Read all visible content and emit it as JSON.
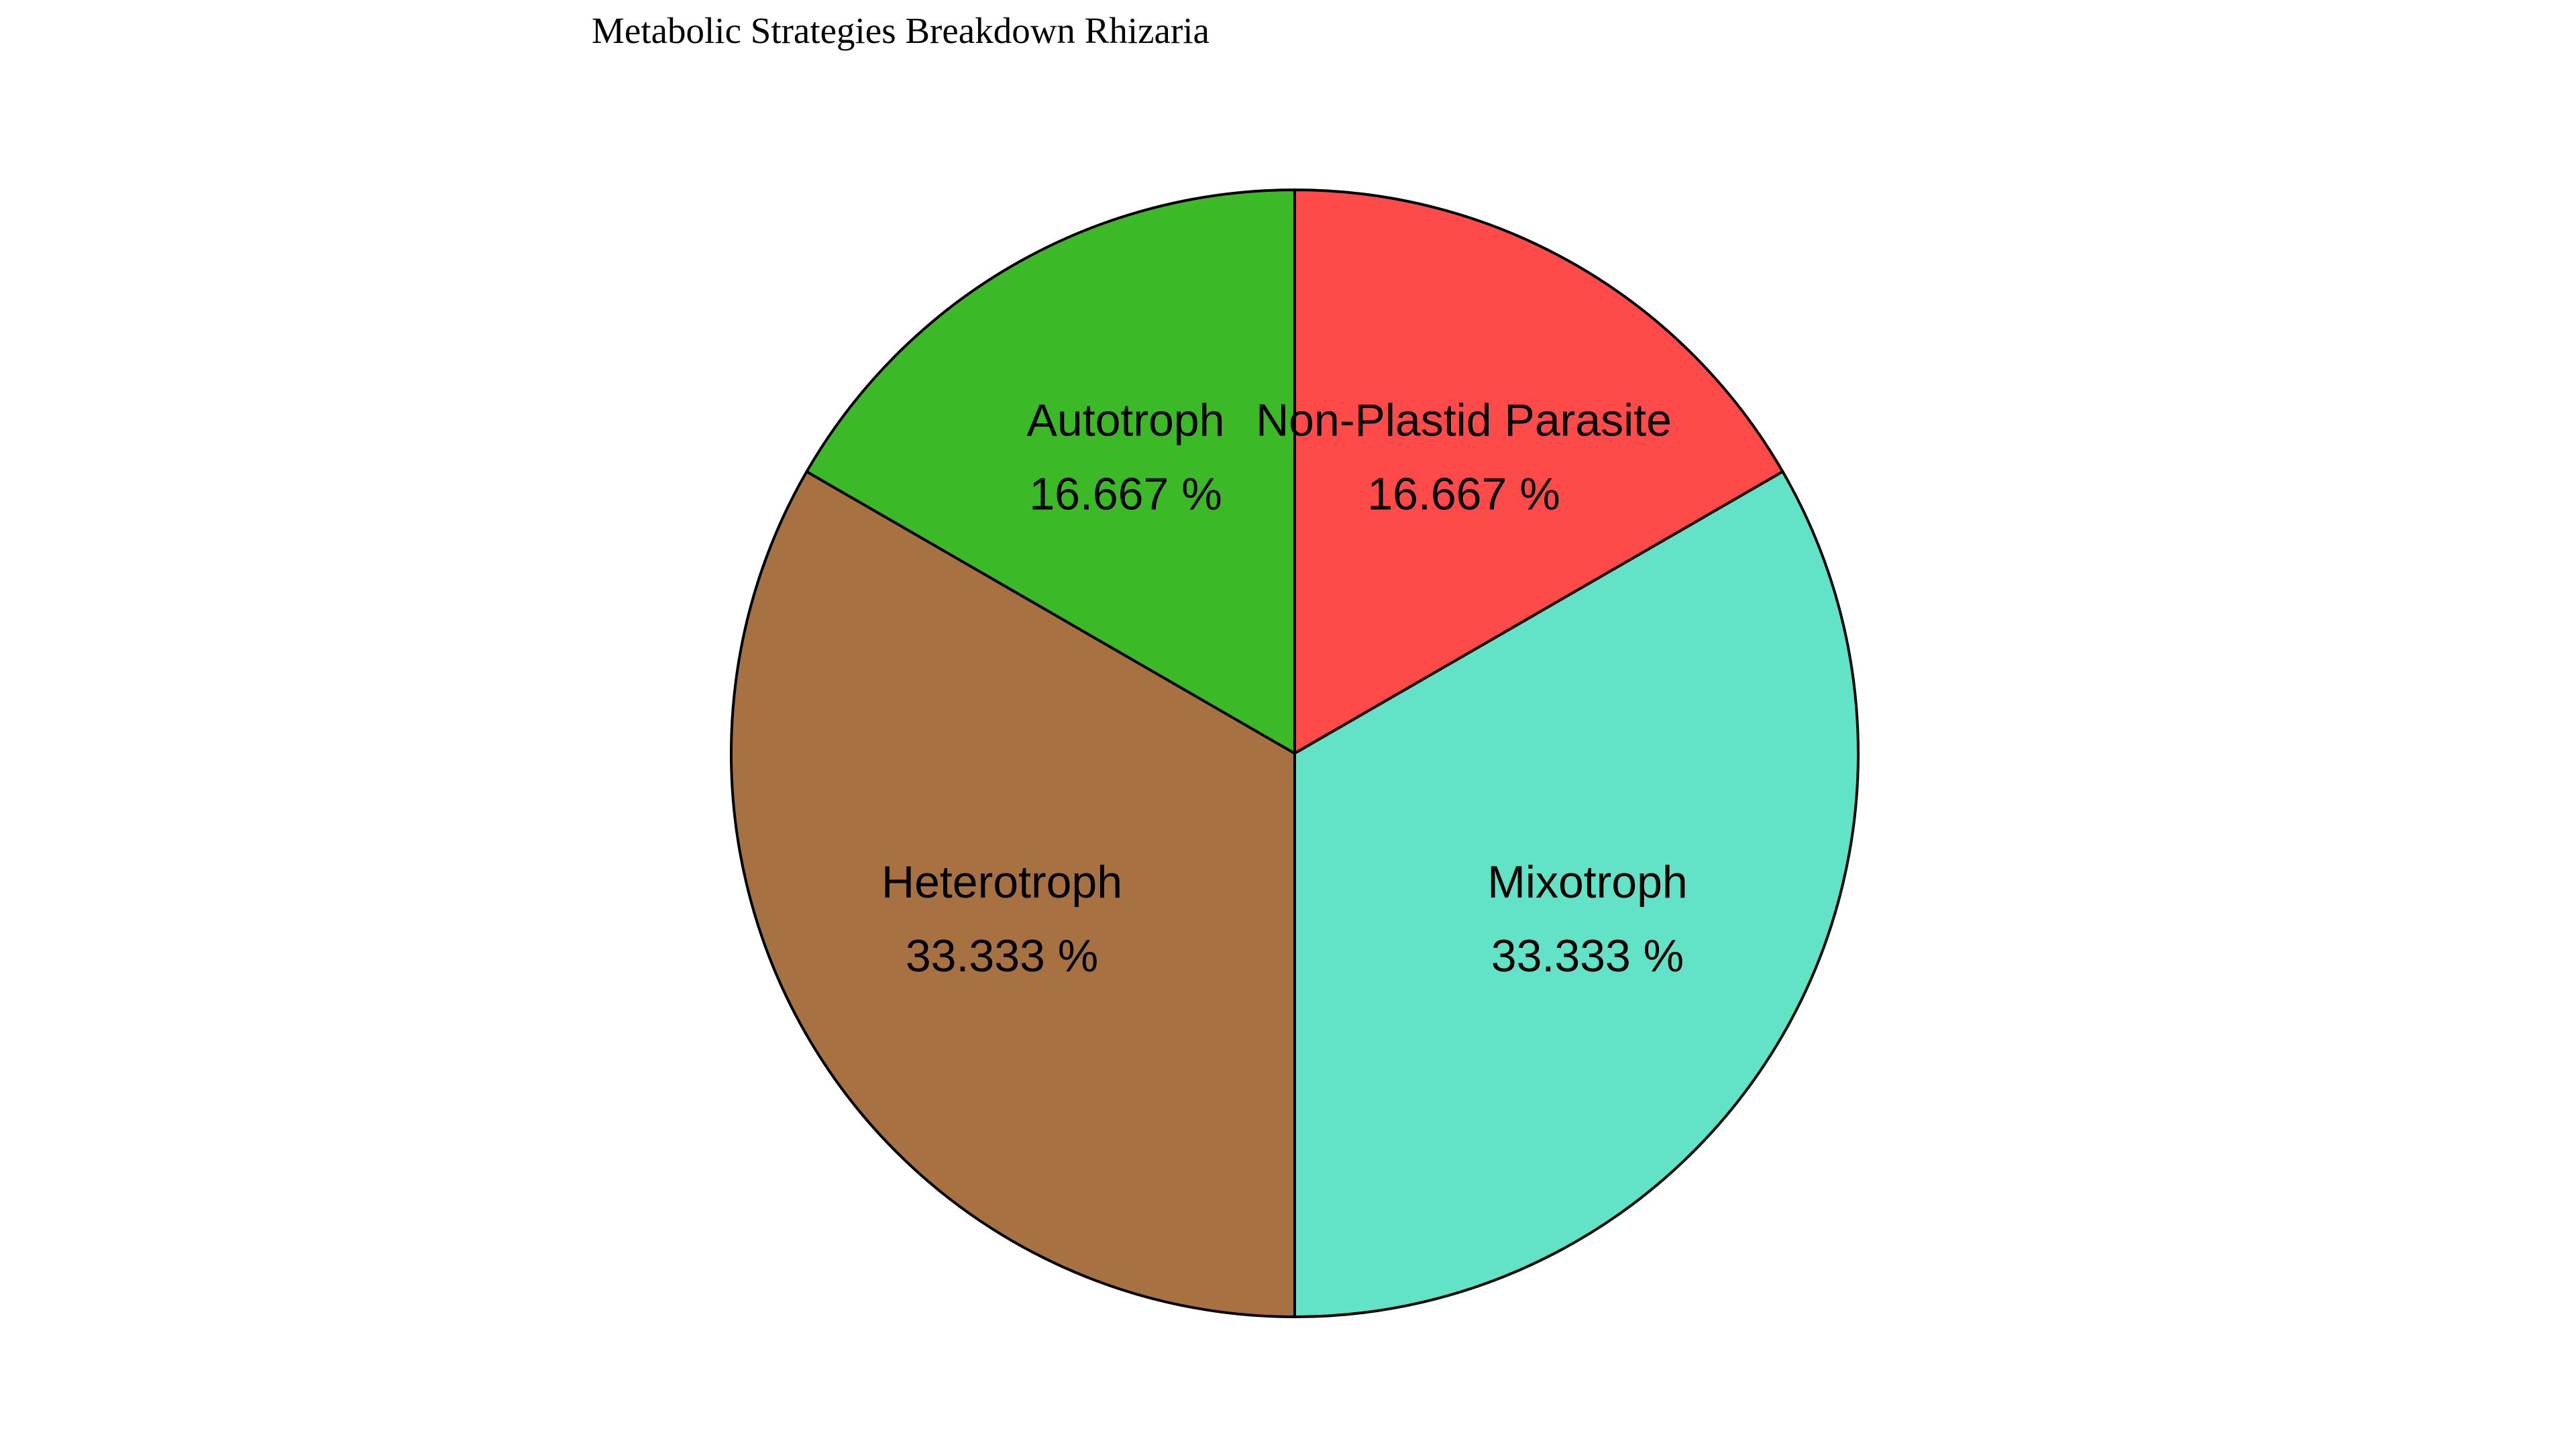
{
  "chart_data": {
    "type": "pie",
    "title": "Metabolic Strategies Breakdown Rhizaria",
    "slices": [
      {
        "label": "Non-Plastid Parasite",
        "value": 16.667,
        "display": "16.667 %",
        "color": "#ff4a4a"
      },
      {
        "label": "Mixotroph",
        "value": 33.333,
        "display": "33.333 %",
        "color": "#62e3c7"
      },
      {
        "label": "Heterotroph",
        "value": 33.333,
        "display": "33.333 %",
        "color": "#a87142"
      },
      {
        "label": "Autotroph",
        "value": 16.667,
        "display": "16.667 %",
        "color": "#3cb927"
      }
    ],
    "start_angle": "12 o'clock",
    "direction": "clockwise",
    "edge_color": "#000000"
  }
}
